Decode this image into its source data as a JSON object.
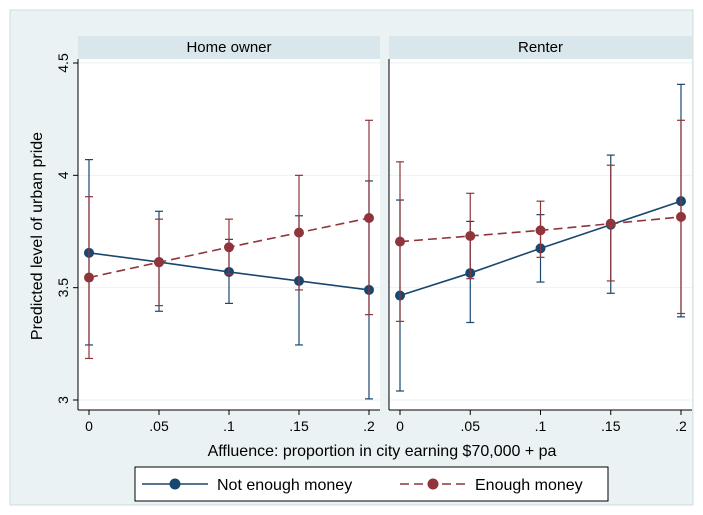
{
  "chart_data": {
    "type": "line",
    "ylabel": "Predicted level of urban pride",
    "xlabel": "Affluence: proportion in city earning $70,000 + pa",
    "ylim": [
      3,
      4.5
    ],
    "yticks": [
      3,
      3.5,
      4,
      4.5
    ],
    "ytick_labels": [
      "3",
      "3.5",
      "4",
      "4.5"
    ],
    "xlim": [
      0,
      0.2
    ],
    "xticks": [
      0,
      0.05,
      0.1,
      0.15,
      0.2
    ],
    "xtick_labels": [
      "0",
      ".05",
      ".1",
      ".15",
      ".2"
    ],
    "grid": "horizontal",
    "legend_position": "bottom",
    "panels": [
      {
        "title": "Home owner",
        "series": [
          {
            "name": "Not enough money",
            "color": "#1a476f",
            "dashed": false,
            "x": [
              0,
              0.05,
              0.1,
              0.15,
              0.2
            ],
            "y": [
              3.655,
              3.614,
              3.57,
              3.53,
              3.49
            ],
            "ci_low": [
              3.245,
              3.395,
              3.43,
              3.245,
              3.005
            ],
            "ci_high": [
              4.07,
              3.84,
              3.715,
              3.82,
              3.975
            ]
          },
          {
            "name": "Enough money",
            "color": "#90353b",
            "dashed": true,
            "x": [
              0,
              0.05,
              0.1,
              0.15,
              0.2
            ],
            "y": [
              3.545,
              3.613,
              3.68,
              3.745,
              3.81
            ],
            "ci_low": [
              3.185,
              3.42,
              3.56,
              3.49,
              3.38
            ],
            "ci_high": [
              3.905,
              3.805,
              3.805,
              4.0,
              4.245
            ]
          }
        ]
      },
      {
        "title": "Renter",
        "series": [
          {
            "name": "Not enough money",
            "color": "#1a476f",
            "dashed": false,
            "x": [
              0,
              0.05,
              0.1,
              0.15,
              0.2
            ],
            "y": [
              3.465,
              3.565,
              3.675,
              3.78,
              3.885
            ],
            "ci_low": [
              3.04,
              3.345,
              3.525,
              3.475,
              3.37
            ],
            "ci_high": [
              3.89,
              3.795,
              3.825,
              4.09,
              4.405
            ]
          },
          {
            "name": "Enough money",
            "color": "#90353b",
            "dashed": true,
            "x": [
              0,
              0.05,
              0.1,
              0.15,
              0.2
            ],
            "y": [
              3.705,
              3.73,
              3.755,
              3.785,
              3.815
            ],
            "ci_low": [
              3.35,
              3.54,
              3.635,
              3.53,
              3.385
            ],
            "ci_high": [
              4.06,
              3.92,
              3.885,
              4.045,
              4.245
            ]
          }
        ]
      }
    ],
    "legend": [
      "Not enough money",
      "Enough money"
    ]
  }
}
